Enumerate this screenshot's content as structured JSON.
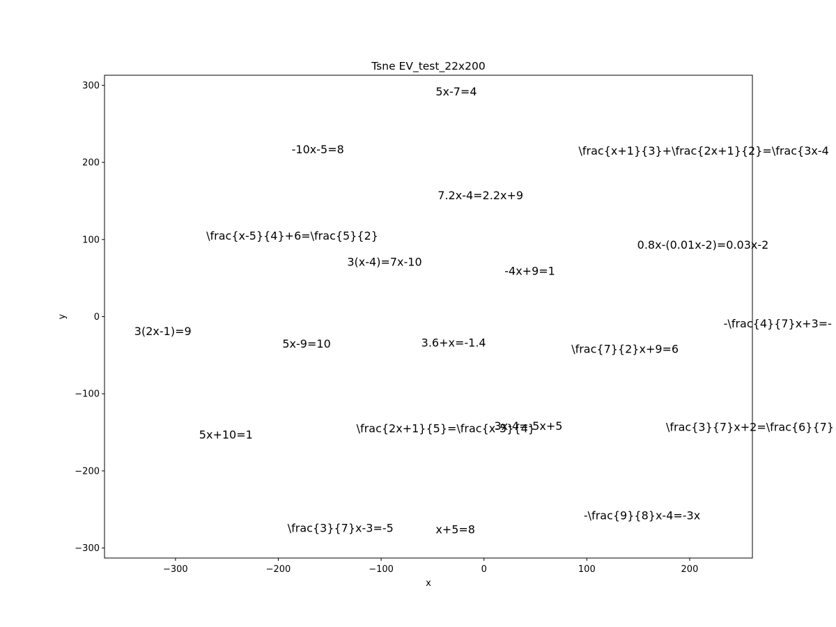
{
  "chart_data": {
    "type": "scatter",
    "title": "Tsne EV_test_22x200",
    "xlabel": "x",
    "ylabel": "y",
    "xlim": [
      -369,
      261
    ],
    "ylim": [
      -313,
      313
    ],
    "xticks": [
      -300,
      -200,
      -100,
      0,
      100,
      200
    ],
    "yticks": [
      -300,
      -200,
      -100,
      0,
      100,
      200,
      300
    ],
    "grid": false,
    "points": [
      {
        "x": -47,
        "y": 287,
        "label": "5x-7=4"
      },
      {
        "x": -187,
        "y": 212,
        "label": "-10x-5=8"
      },
      {
        "x": 92,
        "y": 210,
        "label": "\\frac{x+1}{3}+\\frac{2x+1}{2}=\\frac{3x-4"
      },
      {
        "x": -45,
        "y": 152,
        "label": "7.2x-4=2.2x+9"
      },
      {
        "x": -270,
        "y": 100,
        "label": "\\frac{x-5}{4}+6=\\frac{5}{2}"
      },
      {
        "x": 149,
        "y": 88,
        "label": "0.8x-(0.01x-2)=0.03x-2"
      },
      {
        "x": -133,
        "y": 66,
        "label": "3(x-4)=7x-10"
      },
      {
        "x": 20,
        "y": 54,
        "label": "-4x+9=1"
      },
      {
        "x": 233,
        "y": -14,
        "label": "-\\frac{4}{7}x+3=-"
      },
      {
        "x": -340,
        "y": -24,
        "label": "3(2x-1)=9"
      },
      {
        "x": -196,
        "y": -40,
        "label": "5x-9=10"
      },
      {
        "x": -61,
        "y": -39,
        "label": "3.6+x=-1.4"
      },
      {
        "x": 85,
        "y": -47,
        "label": "\\frac{7}{2}x+9=6"
      },
      {
        "x": 177,
        "y": -148,
        "label": "\\frac{3}{7}x+2=\\frac{6}{7}"
      },
      {
        "x": -124,
        "y": -150,
        "label": "\\frac{2x+1}{5}=\\frac{x-5}{4}"
      },
      {
        "x": 10,
        "y": -147,
        "label": "3x-4=-5x+5"
      },
      {
        "x": -277,
        "y": -158,
        "label": "5x+10=1"
      },
      {
        "x": 97,
        "y": -263,
        "label": "-\\frac{9}{8}x-4=-3x"
      },
      {
        "x": -191,
        "y": -279,
        "label": "\\frac{3}{7}x-3=-5"
      },
      {
        "x": -47,
        "y": -281,
        "label": "x+5=8"
      }
    ]
  }
}
